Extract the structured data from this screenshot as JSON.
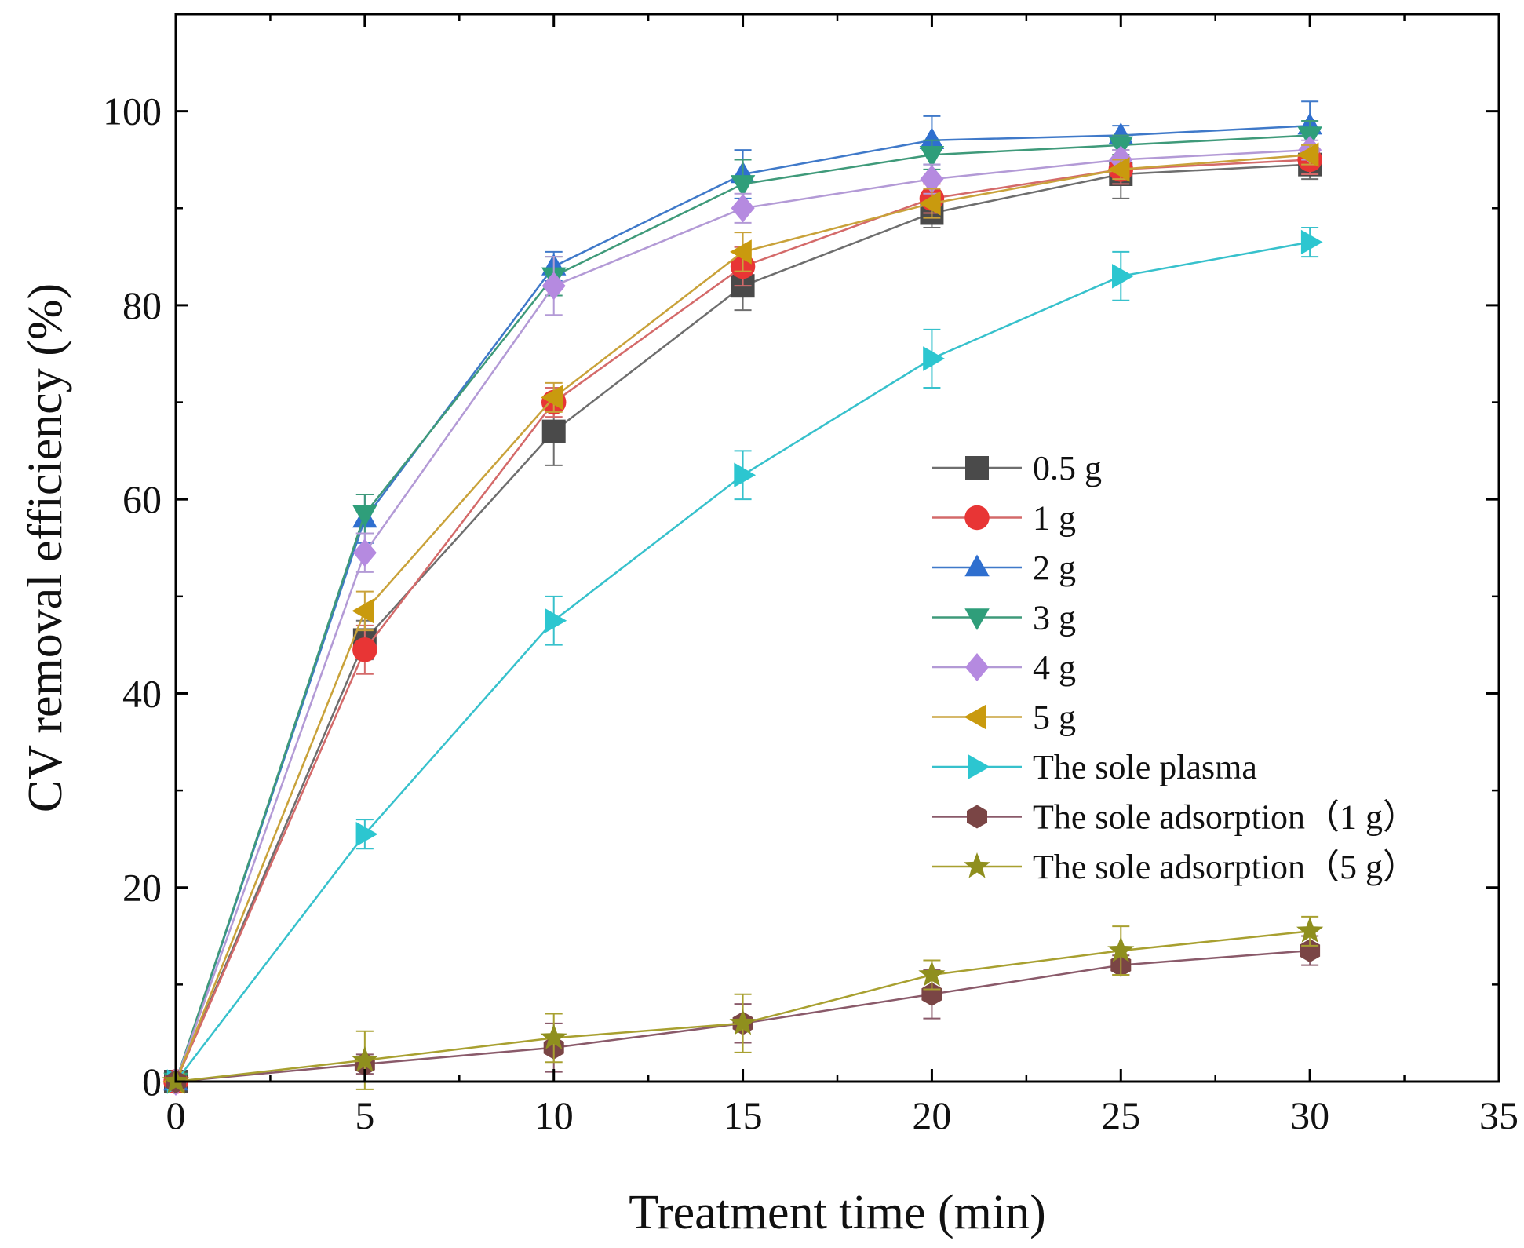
{
  "chart_data": {
    "type": "line",
    "title": "",
    "xlabel": "Treatment time (min)",
    "ylabel": "CV removal efficiency (%)",
    "xlim": [
      0,
      35
    ],
    "ylim": [
      0,
      110
    ],
    "x_ticks": [
      0,
      5,
      10,
      15,
      20,
      25,
      30,
      35
    ],
    "y_ticks": [
      0,
      20,
      40,
      60,
      80,
      100
    ],
    "x_tick_labels": [
      "0",
      "5",
      "10",
      "15",
      "20",
      "25",
      "30",
      "35"
    ],
    "y_tick_labels": [
      "0",
      "20",
      "40",
      "60",
      "80",
      "100"
    ],
    "grid": false,
    "legend_position": "right-center",
    "x": [
      0,
      5,
      10,
      15,
      20,
      25,
      30
    ],
    "series": [
      {
        "name": "0.5 g",
        "marker": "square",
        "color": "#4a4a4a",
        "line_color": "#6e6e6e",
        "values": [
          0,
          45.5,
          67.0,
          82.0,
          89.5,
          93.5,
          94.5
        ],
        "errors": [
          0,
          2.0,
          3.5,
          2.5,
          1.5,
          2.5,
          1.5
        ]
      },
      {
        "name": "1 g",
        "marker": "circle",
        "color": "#e83535",
        "line_color": "#d46a6a",
        "values": [
          0,
          44.5,
          70.0,
          84.0,
          91.0,
          94.0,
          95.0
        ],
        "errors": [
          0,
          2.5,
          1.5,
          2.0,
          1.5,
          1.5,
          1.5
        ]
      },
      {
        "name": "2 g",
        "marker": "triangle-up",
        "color": "#2f6fcf",
        "line_color": "#3f79c9",
        "values": [
          0,
          58.0,
          84.0,
          93.5,
          97.0,
          97.5,
          98.5
        ],
        "errors": [
          0,
          2.5,
          1.5,
          2.5,
          2.5,
          1.0,
          2.5
        ]
      },
      {
        "name": "3 g",
        "marker": "triangle-down",
        "color": "#2f9e7a",
        "line_color": "#3f9a7a",
        "values": [
          0,
          58.5,
          83.0,
          92.5,
          95.5,
          96.5,
          97.5
        ],
        "errors": [
          0,
          2.0,
          2.0,
          2.5,
          1.5,
          1.0,
          1.5
        ]
      },
      {
        "name": "4 g",
        "marker": "diamond",
        "color": "#b58ae0",
        "line_color": "#b39ad6",
        "values": [
          0,
          54.5,
          82.0,
          90.0,
          93.0,
          95.0,
          96.0
        ],
        "errors": [
          0,
          2.0,
          3.0,
          1.5,
          1.5,
          1.0,
          1.0
        ]
      },
      {
        "name": "5 g",
        "marker": "triangle-left",
        "color": "#c99a0e",
        "line_color": "#c9a23a",
        "values": [
          0,
          48.5,
          70.5,
          85.5,
          90.5,
          94.0,
          95.5
        ],
        "errors": [
          0,
          2.0,
          1.5,
          2.0,
          1.5,
          1.0,
          1.0
        ]
      },
      {
        "name": "The sole plasma",
        "marker": "triangle-right",
        "color": "#2cc6d0",
        "line_color": "#37c1cc",
        "values": [
          0,
          25.5,
          47.5,
          62.5,
          74.5,
          83.0,
          86.5
        ],
        "errors": [
          0,
          1.5,
          2.5,
          2.5,
          3.0,
          2.5,
          1.5
        ]
      },
      {
        "name": "The sole adsorption（1 g）",
        "marker": "hexagon",
        "color": "#7a4545",
        "line_color": "#8a5a6a",
        "values": [
          0,
          1.8,
          3.5,
          6.0,
          9.0,
          12.0,
          13.5
        ],
        "errors": [
          0,
          1.0,
          2.5,
          2.0,
          2.5,
          1.0,
          1.5
        ]
      },
      {
        "name": "The sole adsorption（5 g）",
        "marker": "star",
        "color": "#8f8f1e",
        "line_color": "#a8a030",
        "values": [
          0,
          2.2,
          4.5,
          6.0,
          11.0,
          13.5,
          15.5
        ],
        "errors": [
          0,
          3.0,
          2.5,
          3.0,
          1.5,
          2.5,
          1.5
        ]
      }
    ]
  }
}
